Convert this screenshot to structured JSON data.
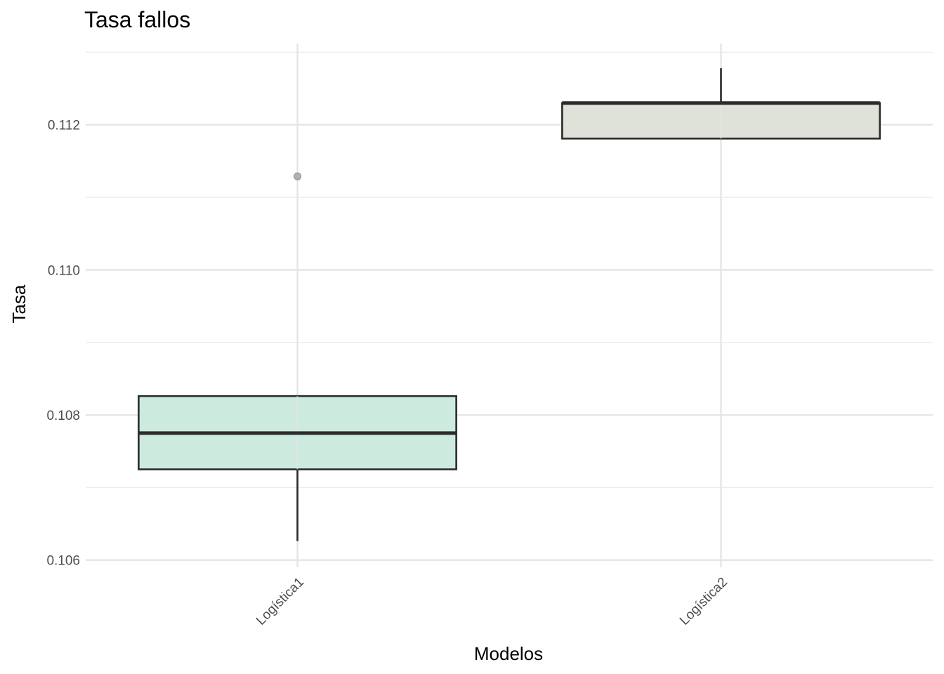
{
  "chart_data": {
    "type": "boxplot",
    "title": "Tasa fallos",
    "xlabel": "Modelos",
    "ylabel": "Tasa",
    "categories": [
      "Logística1",
      "Logística2"
    ],
    "ylim": [
      0.1059,
      0.11312
    ],
    "yticks": [
      0.106,
      0.108,
      0.11,
      0.112
    ],
    "ytick_labels": [
      "0.106",
      "0.108",
      "0.110",
      "0.112"
    ],
    "grid": true,
    "legend": "none",
    "series": [
      {
        "category": "Logística1",
        "whisker_low": 0.10626,
        "q1": 0.10725,
        "median": 0.10775,
        "q3": 0.10826,
        "whisker_high": 0.10826,
        "outliers": [
          0.11129
        ],
        "fill": "#cdeadf"
      },
      {
        "category": "Logística2",
        "whisker_low": 0.11181,
        "q1": 0.11181,
        "median": 0.1123,
        "q3": 0.1123,
        "whisker_high": 0.11278,
        "outliers": [],
        "fill": "#dee2d8"
      }
    ],
    "colors": {
      "box_stroke": "#2b2b2b",
      "outlier": "#a6a6a6"
    }
  }
}
